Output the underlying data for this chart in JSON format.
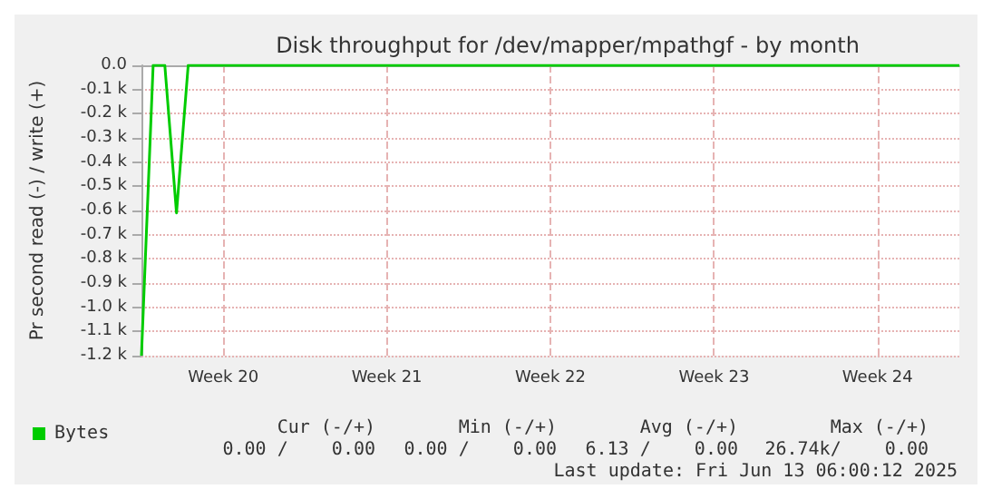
{
  "chart_data": {
    "type": "line",
    "title": "Disk throughput for /dev/mapper/mpathgf - by month",
    "ylabel": "Pr second read (-) / write (+)",
    "categories": [
      null,
      null,
      null,
      null,
      null,
      null,
      null,
      "Week 20",
      null,
      null,
      null,
      null,
      null,
      null,
      null,
      null,
      null,
      null,
      null,
      null,
      null,
      "Week 21",
      null,
      null,
      null,
      null,
      null,
      null,
      null,
      null,
      null,
      null,
      null,
      null,
      null,
      "Week 22",
      null,
      null,
      null,
      null,
      null,
      null,
      null,
      null,
      null,
      null,
      null,
      null,
      null,
      "Week 23",
      null,
      null,
      null,
      null,
      null,
      null,
      null,
      null,
      null,
      null,
      null,
      null,
      null,
      "Week 24",
      null,
      null,
      null,
      null,
      null,
      null,
      null
    ],
    "ylim": [
      -1200,
      0
    ],
    "yticks": [
      {
        "value": -1200,
        "label": "-1.2 k"
      },
      {
        "value": -1100,
        "label": "-1.1 k"
      },
      {
        "value": -1000,
        "label": "-1.0 k"
      },
      {
        "value": -900,
        "label": "-0.9 k"
      },
      {
        "value": -800,
        "label": "-0.8 k"
      },
      {
        "value": -700,
        "label": "-0.7 k"
      },
      {
        "value": -600,
        "label": "-0.6 k"
      },
      {
        "value": -500,
        "label": "-0.5 k"
      },
      {
        "value": -400,
        "label": "-0.4 k"
      },
      {
        "value": -300,
        "label": "-0.3 k"
      },
      {
        "value": -200,
        "label": "-0.2 k"
      },
      {
        "value": -100,
        "label": "-0.1 k"
      },
      {
        "value": 0,
        "label": "0.0"
      }
    ],
    "grid": true,
    "legend": "bottom left",
    "marker": "none",
    "line_style": "solid",
    "series": [
      {
        "name": "Bytes",
        "color": "#00cc00",
        "values": [
          -1200,
          0,
          0,
          -610,
          0,
          0,
          0,
          0,
          0,
          0,
          0,
          0,
          0,
          0,
          0,
          0,
          0,
          0,
          0,
          0,
          0,
          0,
          0,
          0,
          0,
          0,
          0,
          0,
          0,
          0,
          0,
          0,
          0,
          0,
          0,
          0,
          0,
          0,
          0,
          0,
          0,
          0,
          0,
          0,
          0,
          0,
          0,
          0,
          0,
          0,
          0,
          0,
          0,
          0,
          0,
          0,
          0,
          0,
          0,
          0,
          0,
          0,
          0,
          0,
          0,
          0,
          0,
          0,
          0,
          0,
          0
        ]
      }
    ],
    "annotations": [
      "Cur (-/+)",
      "Min (-/+)",
      "Avg (-/+)",
      "Max (-/+)",
      "0.00 /    0.00",
      "0.00 /    0.00",
      "6.13 /    0.00",
      "26.74k/    0.00",
      "Last update: Fri Jun 13 06:00:12 2025"
    ]
  }
}
